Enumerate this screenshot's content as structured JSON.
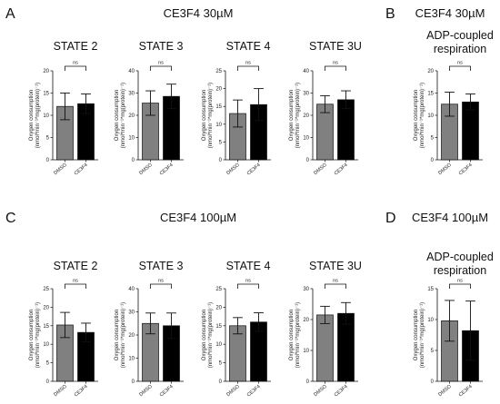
{
  "panels": [
    {
      "letter": "A",
      "title": "CE3F4 30µM"
    },
    {
      "letter": "B",
      "title": "CE3F4 30µM"
    },
    {
      "letter": "C",
      "title": "CE3F4 100µM"
    },
    {
      "letter": "D",
      "title": "CE3F4 100µM"
    }
  ],
  "colors": {
    "DMSO": "#808080",
    "CE3F4": "#000000"
  },
  "chart_data": [
    {
      "type": "bar",
      "panel": "A",
      "title": [
        "STATE 2"
      ],
      "categories": [
        "DMSO",
        "CE3F4"
      ],
      "ylabel": [
        "Oxygen consumption",
        "(nmol*min⁻¹*mg(protein)⁻¹)"
      ],
      "ylim": [
        0,
        20
      ],
      "yticks": [
        0,
        5,
        10,
        15,
        20
      ],
      "values": [
        12.0,
        12.6
      ],
      "errors": [
        3.0,
        2.2
      ],
      "annotation": "ns"
    },
    {
      "type": "bar",
      "panel": "A",
      "title": [
        "STATE 3"
      ],
      "categories": [
        "DMSO",
        "CE3F4"
      ],
      "ylabel": [
        "Oxygen consumption",
        "(nmol*min⁻¹*mg(protein)⁻¹)"
      ],
      "ylim": [
        0,
        40
      ],
      "yticks": [
        0,
        10,
        20,
        30,
        40
      ],
      "values": [
        25.5,
        28.5
      ],
      "errors": [
        5.5,
        5.5
      ],
      "annotation": "ns"
    },
    {
      "type": "bar",
      "panel": "A",
      "title": [
        "STATE 4"
      ],
      "categories": [
        "DMSO",
        "CE3F4"
      ],
      "ylabel": [
        "Oxygen consumption",
        "(nmol*min⁻¹*mg(protein)⁻¹)"
      ],
      "ylim": [
        0,
        25
      ],
      "yticks": [
        0,
        5,
        10,
        15,
        20,
        25
      ],
      "values": [
        13.0,
        15.5
      ],
      "errors": [
        3.8,
        4.5
      ],
      "annotation": "ns"
    },
    {
      "type": "bar",
      "panel": "A",
      "title": [
        "STATE 3U"
      ],
      "categories": [
        "DMSO",
        "CE3F4"
      ],
      "ylabel": [
        "Oxygen consumption",
        "(nmol*min⁻¹*mg(protein)⁻¹)"
      ],
      "ylim": [
        0,
        40
      ],
      "yticks": [
        0,
        10,
        20,
        30,
        40
      ],
      "values": [
        25.0,
        27.0
      ],
      "errors": [
        3.8,
        4.0
      ],
      "annotation": "ns"
    },
    {
      "type": "bar",
      "panel": "B",
      "title": [
        "ADP-coupled",
        "respiration"
      ],
      "categories": [
        "DMSO",
        "CE3F4"
      ],
      "ylabel": [
        "Oxygen consumption",
        "(nmol*min⁻¹*mg(protein)⁻¹)"
      ],
      "ylim": [
        0,
        20
      ],
      "yticks": [
        0,
        5,
        10,
        15,
        20
      ],
      "values": [
        12.5,
        13.0
      ],
      "errors": [
        2.7,
        1.8
      ],
      "annotation": "ns"
    },
    {
      "type": "bar",
      "panel": "C",
      "title": [
        "STATE 2"
      ],
      "categories": [
        "DMSO",
        "CE3F4"
      ],
      "ylabel": [
        "Oxygen consumption",
        "(nmol*min⁻¹*mg(protein)⁻¹)"
      ],
      "ylim": [
        0,
        25
      ],
      "yticks": [
        0,
        5,
        10,
        15,
        20,
        25
      ],
      "values": [
        15.2,
        13.2
      ],
      "errors": [
        3.4,
        2.5
      ],
      "annotation": "ns"
    },
    {
      "type": "bar",
      "panel": "C",
      "title": [
        "STATE 3"
      ],
      "categories": [
        "DMSO",
        "CE3F4"
      ],
      "ylabel": [
        "Oxygen consumption",
        "(nmol*min⁻¹*mg(protein)⁻¹)"
      ],
      "ylim": [
        0,
        40
      ],
      "yticks": [
        0,
        10,
        20,
        30,
        40
      ],
      "values": [
        25.0,
        24.0
      ],
      "errors": [
        4.5,
        5.5
      ],
      "annotation": "ns"
    },
    {
      "type": "bar",
      "panel": "C",
      "title": [
        "STATE 4"
      ],
      "categories": [
        "DMSO",
        "CE3F4"
      ],
      "ylabel": [
        "Oxygen consumption",
        "(nmol*min⁻¹*mg(protein)⁻¹)"
      ],
      "ylim": [
        0,
        25
      ],
      "yticks": [
        0,
        5,
        10,
        15,
        20,
        25
      ],
      "values": [
        15.0,
        16.0
      ],
      "errors": [
        2.2,
        2.5
      ],
      "annotation": "ns"
    },
    {
      "type": "bar",
      "panel": "C",
      "title": [
        "STATE 3U"
      ],
      "categories": [
        "DMSO",
        "CE3F4"
      ],
      "ylabel": [
        "Oxygen consumption",
        "(nmol*min⁻¹*mg(protein)⁻¹)"
      ],
      "ylim": [
        0,
        30
      ],
      "yticks": [
        0,
        10,
        20,
        30
      ],
      "values": [
        21.5,
        22.0
      ],
      "errors": [
        2.8,
        3.5
      ],
      "annotation": "ns"
    },
    {
      "type": "bar",
      "panel": "D",
      "title": [
        "ADP-coupled",
        "respiration"
      ],
      "categories": [
        "DMSO",
        "CE3F4"
      ],
      "ylabel": [
        "Oxygen consumption",
        "(nmol*min⁻¹*mg(protein)⁻¹)"
      ],
      "ylim": [
        0,
        15
      ],
      "yticks": [
        0,
        5,
        10,
        15
      ],
      "values": [
        9.8,
        8.2
      ],
      "errors": [
        3.3,
        4.8
      ],
      "annotation": "ns"
    }
  ]
}
